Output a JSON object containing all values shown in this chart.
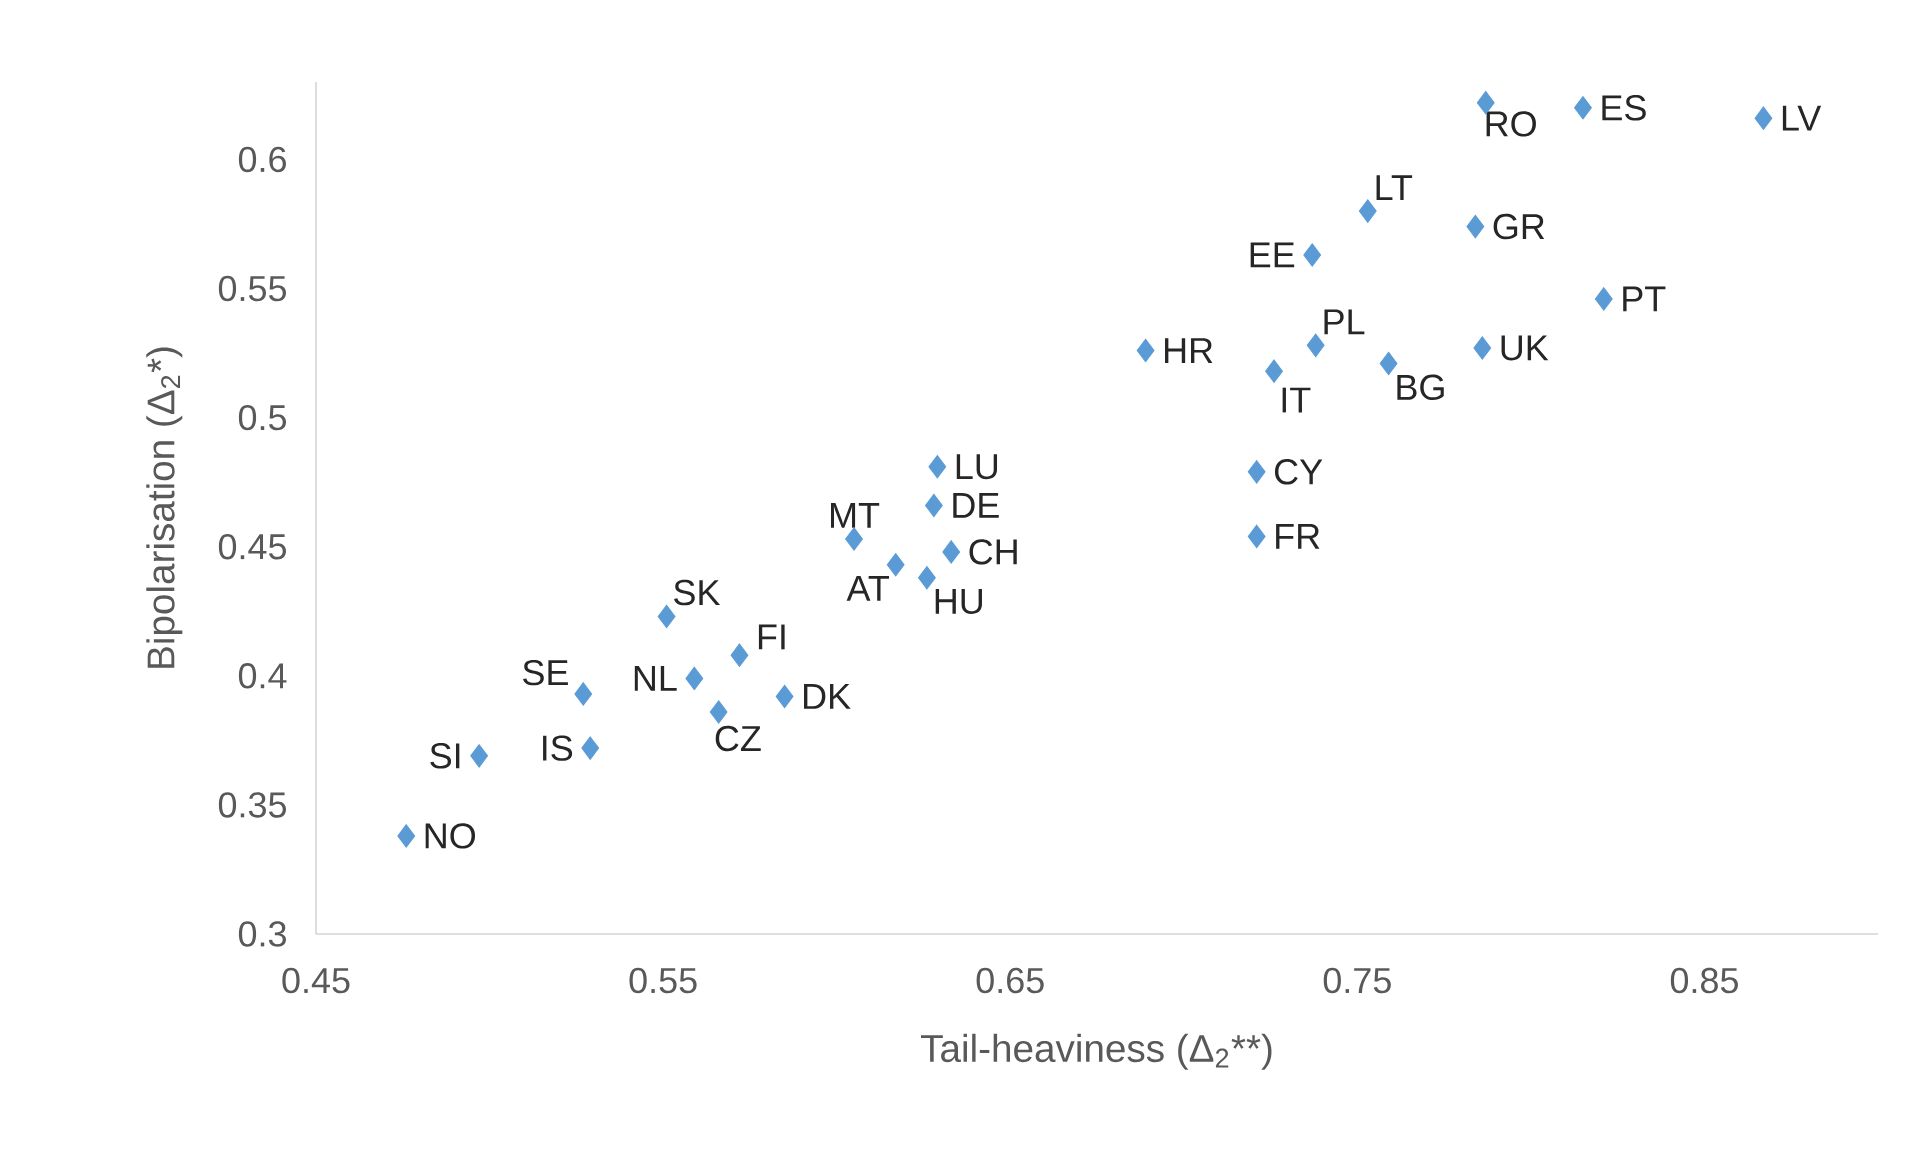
{
  "chart_data": {
    "type": "scatter",
    "xlabel": "Tail-heaviness (Δ$_{2}$**)",
    "ylabel": "Bipolarisation (Δ$_{2}$*)",
    "x": [
      0.476,
      0.497,
      0.529,
      0.527,
      0.559,
      0.566,
      0.572,
      0.585,
      0.551,
      0.605,
      0.617,
      0.626,
      0.633,
      0.628,
      0.629,
      0.689,
      0.726,
      0.738,
      0.759,
      0.786,
      0.821,
      0.737,
      0.753,
      0.784,
      0.787,
      0.815,
      0.867,
      0.721,
      0.721
    ],
    "values": [
      0.338,
      0.369,
      0.372,
      0.393,
      0.399,
      0.386,
      0.408,
      0.392,
      0.423,
      0.453,
      0.443,
      0.438,
      0.448,
      0.466,
      0.481,
      0.526,
      0.518,
      0.528,
      0.521,
      0.527,
      0.546,
      0.563,
      0.58,
      0.574,
      0.622,
      0.62,
      0.616,
      0.479,
      0.454
    ],
    "color": "#5b9bd5",
    "marker": "diamond",
    "xlim": [
      0.45,
      0.9
    ],
    "ylim": [
      0.3,
      0.63
    ],
    "xticks": [
      0.45,
      0.55,
      0.65,
      0.75,
      0.85
    ],
    "yticks": [
      0.3,
      0.35,
      0.4,
      0.45,
      0.5,
      0.55,
      0.6
    ],
    "annotations": [
      {
        "text": "NO",
        "x": 0.476,
        "y": 0.338
      },
      {
        "text": "SI",
        "x": 0.497,
        "y": 0.369
      },
      {
        "text": "IS",
        "x": 0.529,
        "y": 0.372
      },
      {
        "text": "SE",
        "x": 0.527,
        "y": 0.393
      },
      {
        "text": "NL",
        "x": 0.559,
        "y": 0.399
      },
      {
        "text": "CZ",
        "x": 0.566,
        "y": 0.386
      },
      {
        "text": "FI",
        "x": 0.572,
        "y": 0.408
      },
      {
        "text": "DK",
        "x": 0.585,
        "y": 0.392
      },
      {
        "text": "SK",
        "x": 0.551,
        "y": 0.423
      },
      {
        "text": "MT",
        "x": 0.605,
        "y": 0.453
      },
      {
        "text": "AT",
        "x": 0.617,
        "y": 0.443
      },
      {
        "text": "HU",
        "x": 0.626,
        "y": 0.438
      },
      {
        "text": "CH",
        "x": 0.633,
        "y": 0.448
      },
      {
        "text": "DE",
        "x": 0.628,
        "y": 0.466
      },
      {
        "text": "LU",
        "x": 0.629,
        "y": 0.481
      },
      {
        "text": "HR",
        "x": 0.689,
        "y": 0.526
      },
      {
        "text": "IT",
        "x": 0.726,
        "y": 0.518
      },
      {
        "text": "PL",
        "x": 0.738,
        "y": 0.528
      },
      {
        "text": "BG",
        "x": 0.759,
        "y": 0.521
      },
      {
        "text": "UK",
        "x": 0.786,
        "y": 0.527
      },
      {
        "text": "PT",
        "x": 0.821,
        "y": 0.546
      },
      {
        "text": "EE",
        "x": 0.737,
        "y": 0.563
      },
      {
        "text": "LT",
        "x": 0.753,
        "y": 0.58
      },
      {
        "text": "GR",
        "x": 0.784,
        "y": 0.574
      },
      {
        "text": "RO",
        "x": 0.787,
        "y": 0.622
      },
      {
        "text": "ES",
        "x": 0.815,
        "y": 0.62
      },
      {
        "text": "LV",
        "x": 0.867,
        "y": 0.616
      },
      {
        "text": "CY",
        "x": 0.721,
        "y": 0.479
      },
      {
        "text": "FR",
        "x": 0.721,
        "y": 0.454
      }
    ]
  }
}
